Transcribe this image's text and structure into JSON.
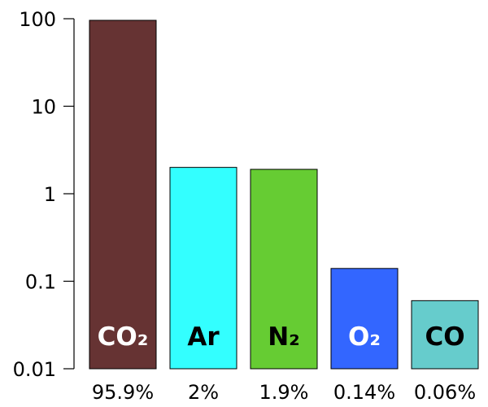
{
  "chart_data": {
    "type": "bar",
    "yscale": "log",
    "ylim": [
      0.01,
      100
    ],
    "yticks": [
      "100",
      "10",
      "1",
      "0.1",
      "0.01"
    ],
    "grid": false,
    "legend": "none",
    "categories": [
      "CO₂",
      "Ar",
      "N₂",
      "O₂",
      "CO"
    ],
    "values": [
      95.9,
      2,
      1.9,
      0.14,
      0.06
    ],
    "value_labels": [
      "95.9%",
      "2%",
      "1.9%",
      "0.14%",
      "0.06%"
    ],
    "bar_colors": [
      "#663333",
      "#33ffff",
      "#66cc33",
      "#3366ff",
      "#66cccc"
    ],
    "label_colors": [
      "#ffffff",
      "#000000",
      "#000000",
      "#ffffff",
      "#000000"
    ]
  }
}
